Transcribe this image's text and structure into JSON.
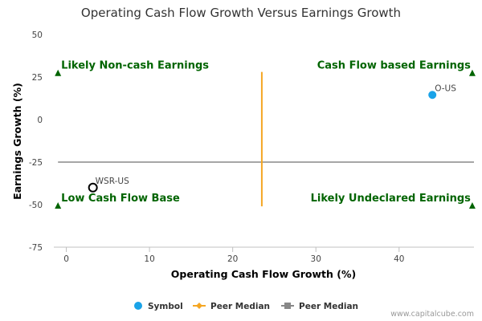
{
  "chart_data": {
    "type": "scatter",
    "title": "Operating Cash Flow Growth Versus Earnings Growth",
    "xlabel": "Operating Cash Flow Growth (%)",
    "ylabel": "Earnings Growth (%)",
    "xlim": [
      -1.5,
      49
    ],
    "ylim": [
      -75,
      50
    ],
    "x_ticks": [
      0,
      10,
      20,
      30,
      40
    ],
    "y_ticks": [
      50,
      25,
      0,
      -25,
      -50,
      -75
    ],
    "grid": false,
    "points": [
      {
        "label": "O-US",
        "x": 44,
        "y": 14.5,
        "style": "filled",
        "color": "#1aa3e8"
      },
      {
        "label": "WSR-US",
        "x": 3.2,
        "y": -40,
        "style": "hollow",
        "color": "#000000"
      }
    ],
    "peer_median_x": {
      "value": 23.5,
      "y_range": [
        -51,
        28
      ],
      "color": "#f5a623"
    },
    "peer_median_y": {
      "value": -25,
      "x_range": [
        -1,
        49
      ],
      "color": "#888888"
    },
    "quadrant_labels": [
      {
        "text": "Likely Non-cash Earnings",
        "x": -1,
        "y": 27.5,
        "align": "left"
      },
      {
        "text": "Cash Flow based Earnings",
        "x": 48.8,
        "y": 27.5,
        "align": "right"
      },
      {
        "text": "Low Cash Flow Base",
        "x": -1,
        "y": -50.5,
        "align": "left"
      },
      {
        "text": "Likely Undeclared Earnings",
        "x": 48.8,
        "y": -50.5,
        "align": "right"
      }
    ],
    "quadrant_color": "#006400",
    "legend": {
      "position": "bottom",
      "items": [
        {
          "label": "Symbol",
          "kind": "circle",
          "color": "#1aa3e8"
        },
        {
          "label": "Peer Median",
          "kind": "line-diamond",
          "color": "#f5a623"
        },
        {
          "label": "Peer Median",
          "kind": "line-square",
          "color": "#888888"
        }
      ]
    },
    "credit": "www.capitalcube.com"
  }
}
